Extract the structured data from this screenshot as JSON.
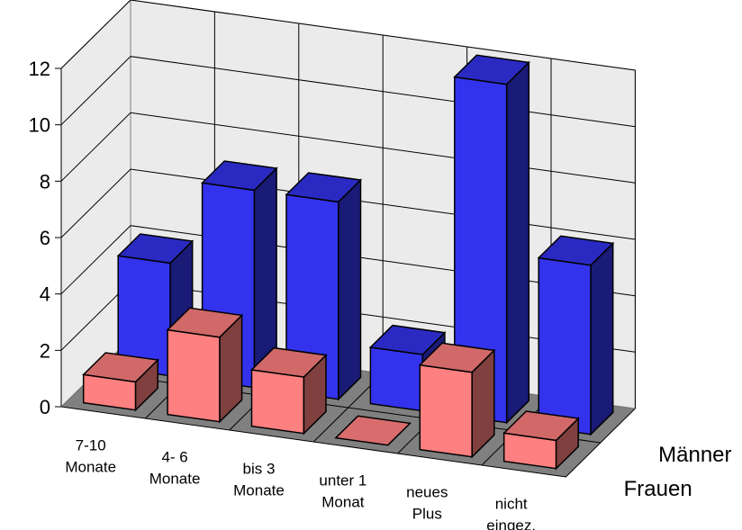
{
  "chart_data": {
    "type": "bar",
    "subtype": "3d-grouped-depth",
    "categories": [
      [
        "7-10",
        "Monate"
      ],
      [
        "4-  6",
        "Monate"
      ],
      [
        "bis 3",
        "Monate"
      ],
      [
        "unter 1",
        "Monat"
      ],
      [
        "neues",
        "Plus"
      ],
      [
        "nicht",
        "eingez."
      ]
    ],
    "series": [
      {
        "name": "Frauen",
        "values": [
          1,
          3,
          2,
          0,
          3,
          1
        ],
        "color": "#ff8080"
      },
      {
        "name": "Männer",
        "values": [
          4,
          7,
          7,
          2,
          12,
          6
        ],
        "color": "#3333ee"
      }
    ],
    "yticks": [
      "0",
      "2",
      "4",
      "6",
      "8",
      "10",
      "12"
    ],
    "ylim": [
      0,
      12
    ],
    "grid": true,
    "title": "",
    "xlabel": "",
    "ylabel": ""
  }
}
